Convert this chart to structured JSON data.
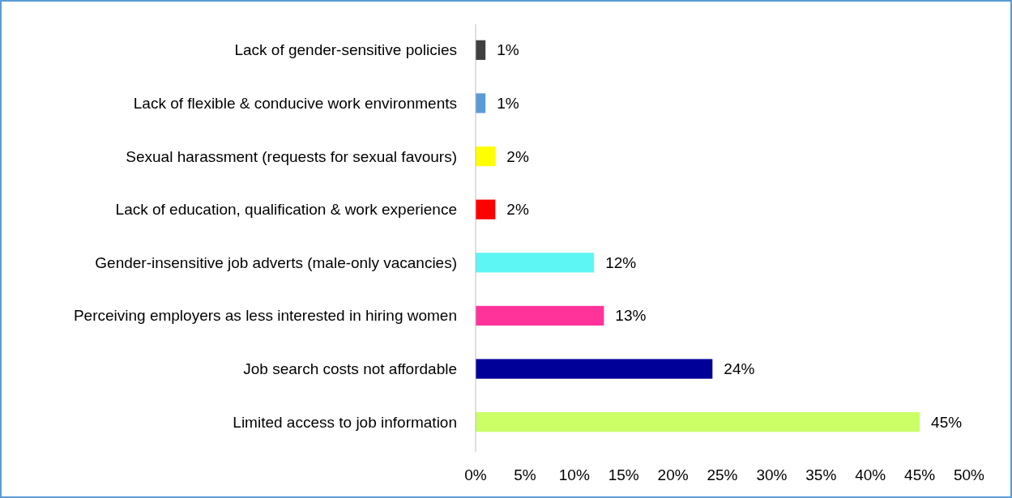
{
  "chart_data": {
    "type": "bar",
    "orientation": "horizontal",
    "categories": [
      "Lack of gender-sensitive policies",
      "Lack of flexible & conducive work environments",
      "Sexual harassment (requests for sexual favours)",
      "Lack of education, qualification & work experience",
      "Gender-insensitive job adverts (male-only vacancies)",
      "Perceiving employers as less interested in hiring women",
      "Job search costs not affordable",
      "Limited access to job information"
    ],
    "values": [
      1,
      1,
      2,
      2,
      12,
      13,
      24,
      45
    ],
    "colors": [
      "#404040",
      "#5b9bd5",
      "#ffff00",
      "#ff0000",
      "#5ef5f5",
      "#ff3399",
      "#000099",
      "#ccff66"
    ],
    "value_labels": [
      "1%",
      "1%",
      "2%",
      "2%",
      "12%",
      "13%",
      "24%",
      "45%"
    ],
    "xlim": [
      0,
      50
    ],
    "xticks": [
      {
        "value": 0,
        "label": "0%"
      },
      {
        "value": 5,
        "label": "5%"
      },
      {
        "value": 10,
        "label": "10%"
      },
      {
        "value": 15,
        "label": "15%"
      },
      {
        "value": 20,
        "label": "20%"
      },
      {
        "value": 25,
        "label": "25%"
      },
      {
        "value": 30,
        "label": "30%"
      },
      {
        "value": 35,
        "label": "35%"
      },
      {
        "value": 40,
        "label": "40%"
      },
      {
        "value": 45,
        "label": "45%"
      },
      {
        "value": 50,
        "label": "50%"
      }
    ],
    "grid": false
  }
}
